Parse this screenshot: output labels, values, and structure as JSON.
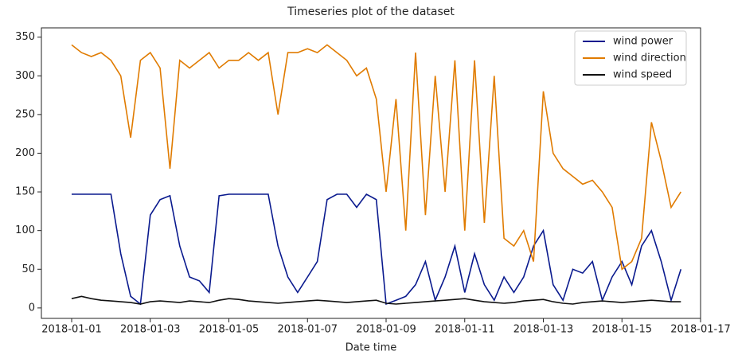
{
  "chart_data": {
    "type": "line",
    "title": "Timeseries plot of the dataset",
    "x_label": "Date time",
    "x": [
      0,
      0.25,
      0.5,
      0.75,
      1,
      1.25,
      1.5,
      1.75,
      2,
      2.25,
      2.5,
      2.75,
      3,
      3.25,
      3.5,
      3.75,
      4,
      4.25,
      4.5,
      4.75,
      5,
      5.25,
      5.5,
      5.75,
      6,
      6.25,
      6.5,
      6.75,
      7,
      7.25,
      7.5,
      7.75,
      8,
      8.25,
      8.5,
      8.75,
      9,
      9.25,
      9.5,
      9.75,
      10,
      10.25,
      10.5,
      10.75,
      11,
      11.25,
      11.5,
      11.75,
      12,
      12.25,
      12.5,
      12.75,
      13,
      13.25,
      13.5,
      13.75,
      14,
      14.25,
      14.5,
      14.75,
      15,
      15.25,
      15.5
    ],
    "series": [
      {
        "name": "wind power",
        "color": "#0a1a8e",
        "values": [
          147,
          147,
          147,
          147,
          147,
          70,
          15,
          5,
          120,
          140,
          145,
          80,
          40,
          35,
          20,
          145,
          147,
          147,
          147,
          147,
          147,
          80,
          40,
          20,
          40,
          60,
          140,
          147,
          147,
          130,
          147,
          140,
          5,
          10,
          15,
          30,
          60,
          10,
          40,
          80,
          20,
          70,
          30,
          10,
          40,
          20,
          40,
          80,
          100,
          30,
          10,
          50,
          45,
          60,
          10,
          40,
          60,
          30,
          80,
          100,
          60,
          10,
          50
        ]
      },
      {
        "name": "wind direction",
        "color": "#e07b00",
        "values": [
          340,
          330,
          325,
          330,
          320,
          300,
          220,
          320,
          330,
          310,
          180,
          320,
          310,
          320,
          330,
          310,
          320,
          320,
          330,
          320,
          330,
          250,
          330,
          330,
          335,
          330,
          340,
          330,
          320,
          300,
          310,
          270,
          150,
          270,
          100,
          330,
          120,
          300,
          150,
          320,
          100,
          320,
          110,
          300,
          90,
          80,
          100,
          60,
          280,
          200,
          180,
          170,
          160,
          165,
          150,
          130,
          50,
          60,
          90,
          240,
          190,
          130,
          150
        ]
      },
      {
        "name": "wind speed",
        "color": "#111111",
        "values": [
          12,
          15,
          12,
          10,
          9,
          8,
          7,
          5,
          8,
          9,
          8,
          7,
          9,
          8,
          7,
          10,
          12,
          11,
          9,
          8,
          7,
          6,
          7,
          8,
          9,
          10,
          9,
          8,
          7,
          8,
          9,
          10,
          6,
          5,
          6,
          7,
          8,
          9,
          10,
          11,
          12,
          10,
          8,
          7,
          6,
          7,
          9,
          10,
          11,
          8,
          6,
          5,
          7,
          8,
          9,
          8,
          7,
          8,
          9,
          10,
          9,
          8,
          8
        ]
      }
    ],
    "xlim": [
      -0.77,
      16
    ],
    "xticks": [
      {
        "value": 0,
        "label": "2018-01-01"
      },
      {
        "value": 2,
        "label": "2018-01-03"
      },
      {
        "value": 4,
        "label": "2018-01-05"
      },
      {
        "value": 6,
        "label": "2018-01-07"
      },
      {
        "value": 8,
        "label": "2018-01-09"
      },
      {
        "value": 10,
        "label": "2018-01-11"
      },
      {
        "value": 12,
        "label": "2018-01-13"
      },
      {
        "value": 14,
        "label": "2018-01-15"
      },
      {
        "value": 16,
        "label": "2018-01-17"
      }
    ],
    "ylim": [
      -13.5,
      362
    ],
    "yticks": [
      0,
      50,
      100,
      150,
      200,
      250,
      300,
      350
    ],
    "legend": "upper right"
  }
}
